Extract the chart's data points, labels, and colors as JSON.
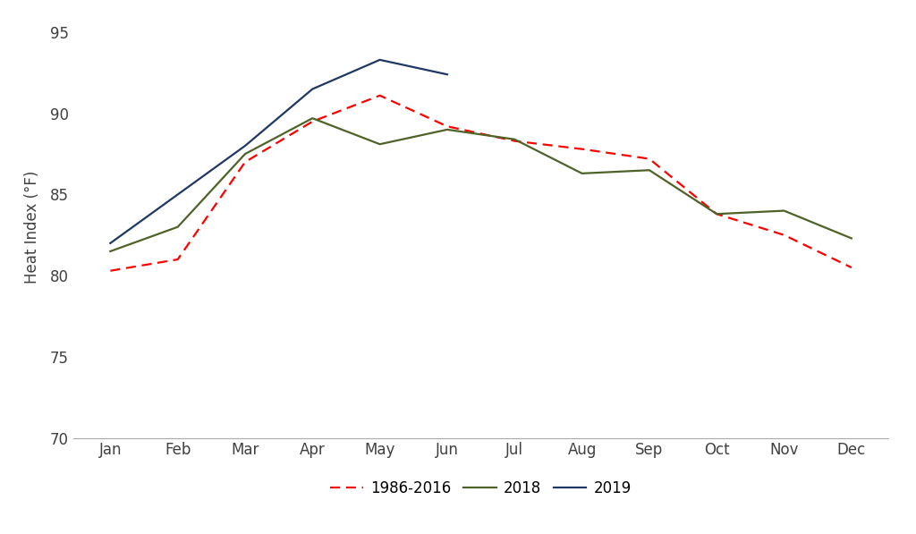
{
  "months": [
    "Jan",
    "Feb",
    "Mar",
    "Apr",
    "May",
    "Jun",
    "Jul",
    "Aug",
    "Sep",
    "Oct",
    "Nov",
    "Dec"
  ],
  "series_1986_2016": [
    80.3,
    81.0,
    87.0,
    89.5,
    91.1,
    89.2,
    88.3,
    87.8,
    87.2,
    83.8,
    82.5,
    80.5
  ],
  "series_2018": [
    81.5,
    83.0,
    87.5,
    89.7,
    88.1,
    89.0,
    88.4,
    86.3,
    86.5,
    83.8,
    84.0,
    82.3
  ],
  "series_2019": [
    82.0,
    85.0,
    88.0,
    91.5,
    93.3,
    92.4,
    null,
    null,
    null,
    null,
    null,
    null
  ],
  "color_1986_2016": "#FF0000",
  "color_2018": "#4F6228",
  "color_2019": "#1F3864",
  "ylabel": "Heat Index (°F)",
  "ylim": [
    70,
    96
  ],
  "yticks": [
    70,
    75,
    80,
    85,
    90,
    95
  ],
  "legend_labels": [
    "1986-2016",
    "2018",
    "2019"
  ],
  "background_color": "#FFFFFF",
  "font_color": "#404040",
  "spine_color": "#AAAAAA"
}
